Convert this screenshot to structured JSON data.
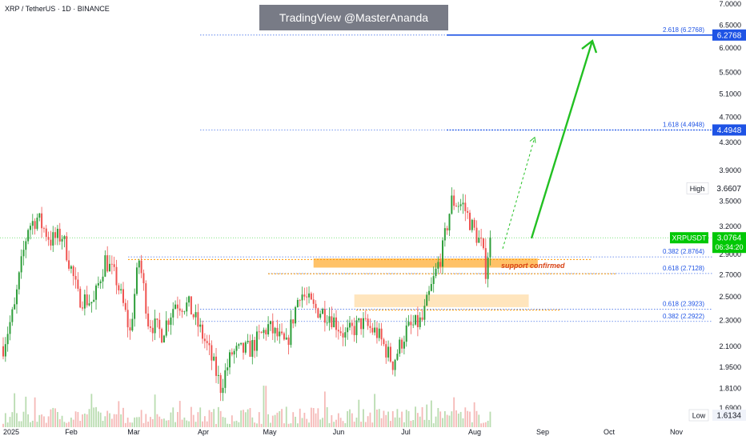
{
  "header": {
    "symbol_title": "XRP / TetherUS · 1D · BINANCE",
    "watermark": "TradingView @MasterAnanda"
  },
  "colors": {
    "up": "#26a69a",
    "up_bar": "#2e9e3a",
    "down": "#ef5350",
    "fib_blue": "#1e53e5",
    "fib_orange": "#ff9800",
    "current_price": "#00c805",
    "arrow_green": "#22c022",
    "zone_orange": "#ffb74d",
    "zone_light": "#ffe0b2"
  },
  "chart_data": {
    "type": "candlestick",
    "title": "XRP / TetherUS · 1D · BINANCE",
    "y_scale": "log",
    "ylim": [
      1.58,
      7.1
    ],
    "y_ticks": [
      "7.0000",
      "6.5000",
      "6.0000",
      "5.5000",
      "5.1000",
      "4.7000",
      "4.3000",
      "3.9000",
      "3.5000",
      "3.2000",
      "2.9000",
      "2.7000",
      "2.5000",
      "2.3000",
      "2.1000",
      "1.9500",
      "1.8100",
      "1.6900"
    ],
    "x_ticks": [
      "2025",
      "Feb",
      "Mar",
      "Apr",
      "May",
      "Jun",
      "Jul",
      "Aug",
      "Sep",
      "Oct",
      "Nov"
    ],
    "series": [
      {
        "name": "XRPUSDT",
        "ohlc_keypoints": [
          {
            "date": "2025-01-01",
            "close": 2.1
          },
          {
            "date": "2025-01-06",
            "close": 2.4
          },
          {
            "date": "2025-01-12",
            "close": 3.2
          },
          {
            "date": "2025-01-16",
            "close": 3.3
          },
          {
            "date": "2025-01-22",
            "close": 3.05
          },
          {
            "date": "2025-01-27",
            "close": 3.1
          },
          {
            "date": "2025-02-03",
            "close": 2.5
          },
          {
            "date": "2025-02-10",
            "close": 2.45
          },
          {
            "date": "2025-02-15",
            "close": 2.85
          },
          {
            "date": "2025-02-20",
            "close": 2.65
          },
          {
            "date": "2025-02-26",
            "close": 2.2
          },
          {
            "date": "2025-03-02",
            "close": 2.85
          },
          {
            "date": "2025-03-06",
            "close": 2.3
          },
          {
            "date": "2025-03-12",
            "close": 2.2
          },
          {
            "date": "2025-03-18",
            "close": 2.45
          },
          {
            "date": "2025-03-24",
            "close": 2.42
          },
          {
            "date": "2025-04-01",
            "close": 2.1
          },
          {
            "date": "2025-04-07",
            "close": 1.82
          },
          {
            "date": "2025-04-12",
            "close": 2.05
          },
          {
            "date": "2025-04-20",
            "close": 2.08
          },
          {
            "date": "2025-04-28",
            "close": 2.25
          },
          {
            "date": "2025-05-06",
            "close": 2.1
          },
          {
            "date": "2025-05-12",
            "close": 2.55
          },
          {
            "date": "2025-05-18",
            "close": 2.4
          },
          {
            "date": "2025-05-25",
            "close": 2.35
          },
          {
            "date": "2025-06-01",
            "close": 2.18
          },
          {
            "date": "2025-06-08",
            "close": 2.28
          },
          {
            "date": "2025-06-15",
            "close": 2.2
          },
          {
            "date": "2025-06-22",
            "close": 1.98
          },
          {
            "date": "2025-06-28",
            "close": 2.22
          },
          {
            "date": "2025-07-05",
            "close": 2.3
          },
          {
            "date": "2025-07-10",
            "close": 2.65
          },
          {
            "date": "2025-07-14",
            "close": 2.95
          },
          {
            "date": "2025-07-18",
            "close": 3.5
          },
          {
            "date": "2025-07-23",
            "close": 3.45
          },
          {
            "date": "2025-07-27",
            "close": 3.2
          },
          {
            "date": "2025-07-31",
            "close": 3.0
          },
          {
            "date": "2025-08-02",
            "close": 2.75
          },
          {
            "date": "2025-08-04",
            "close": 3.08
          }
        ]
      }
    ],
    "levels": [
      {
        "label": "2.618 (6.2768)",
        "value": 6.2768,
        "color_key": "fib_blue",
        "style": "dotted"
      },
      {
        "label": "1.618 (4.4948)",
        "value": 4.4948,
        "color_key": "fib_blue",
        "style": "dotted"
      },
      {
        "label": "0.382 (2.8764)",
        "value": 2.8764,
        "color_key": "fib_blue",
        "style": "dotted"
      },
      {
        "label": "0.618 (2.7128)",
        "value": 2.7128,
        "color_key": "fib_blue",
        "style": "dotted"
      },
      {
        "label": "0.618 (2.3923)",
        "value": 2.3923,
        "color_key": "fib_blue",
        "style": "dotted"
      },
      {
        "label": "0.382 (2.2922)",
        "value": 2.2922,
        "color_key": "fib_blue",
        "style": "dotted"
      }
    ],
    "price_tags": [
      {
        "label": "6.2768",
        "value": 6.2768,
        "kind": "fib"
      },
      {
        "label": "4.4948",
        "value": 4.4948,
        "kind": "fib"
      },
      {
        "label": "3.6607",
        "value": 3.6607,
        "kind": "high",
        "name": "High"
      },
      {
        "label": "3.0764",
        "value": 3.0764,
        "kind": "current",
        "name": "XRPUSDT",
        "countdown": "06:34:20"
      },
      {
        "label": "1.6134",
        "value": 1.6134,
        "kind": "low",
        "name": "Low"
      }
    ],
    "zones": [
      {
        "from": 2.77,
        "to": 2.86,
        "date_from": "2025-05-18",
        "date_to": "2025-08-25",
        "color_key": "zone_orange"
      },
      {
        "from": 2.41,
        "to": 2.52,
        "date_from": "2025-06-05",
        "date_to": "2025-08-21",
        "color_key": "zone_light"
      }
    ],
    "annotations": [
      {
        "text": "support confirmed",
        "value": 2.79,
        "date": "2025-08-08"
      }
    ]
  }
}
